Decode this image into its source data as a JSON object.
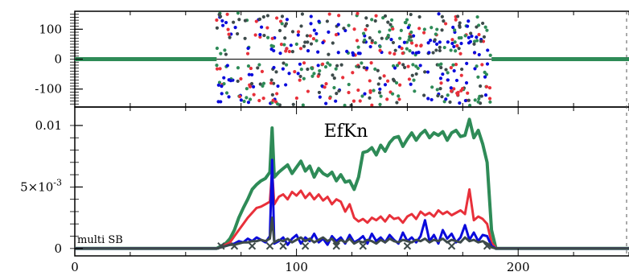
{
  "colors": {
    "green": "#2e8b57",
    "red": "#e8303a",
    "blue": "#0a0adc",
    "dark": "#3d4a4a",
    "axis": "#000000"
  },
  "chart_data": [
    {
      "type": "scatter",
      "title": "",
      "xlim": [
        0,
        250
      ],
      "ylim": [
        -160,
        160
      ],
      "y_ticks": [
        {
          "value": 100,
          "label": "100"
        },
        {
          "value": 0,
          "label": "0"
        },
        {
          "value": -100,
          "label": "-100"
        }
      ],
      "active_x_range": [
        64,
        188
      ],
      "series": [
        {
          "color": "green",
          "values_note": ""
        },
        {
          "color": "red"
        },
        {
          "color": "blue"
        },
        {
          "color": "dark"
        }
      ],
      "zero_line_outside_active": true
    },
    {
      "type": "line",
      "title": "EfKn",
      "annotation": "multi SB",
      "xlim": [
        0,
        250
      ],
      "ylim": [
        -0.0006,
        0.0115
      ],
      "x_ticks": [
        {
          "value": 0,
          "label": "0"
        },
        {
          "value": 100,
          "label": "100"
        },
        {
          "value": 200,
          "label": "200"
        }
      ],
      "y_ticks": [
        {
          "value": 0.01,
          "label": "0.01"
        },
        {
          "value": 0.005,
          "label": "5×10",
          "sup": "-3"
        },
        {
          "value": 0,
          "label": "0"
        }
      ],
      "x": [
        0,
        10,
        20,
        30,
        40,
        50,
        60,
        64,
        66,
        68,
        70,
        72,
        74,
        76,
        78,
        80,
        82,
        84,
        86,
        88,
        89,
        90,
        92,
        94,
        96,
        98,
        100,
        102,
        104,
        106,
        108,
        110,
        112,
        114,
        116,
        118,
        120,
        122,
        124,
        126,
        128,
        130,
        132,
        134,
        136,
        138,
        140,
        142,
        144,
        146,
        148,
        150,
        152,
        154,
        156,
        158,
        160,
        162,
        164,
        166,
        168,
        170,
        172,
        174,
        176,
        178,
        180,
        182,
        184,
        186,
        188,
        190,
        200,
        210,
        220,
        230,
        240,
        250
      ],
      "series_values": {
        "green": [
          0,
          0,
          0,
          0,
          0,
          0,
          0,
          0,
          0.0002,
          0.0004,
          0.0008,
          0.0015,
          0.0025,
          0.0033,
          0.004,
          0.0048,
          0.0052,
          0.0055,
          0.0057,
          0.0062,
          0.0098,
          0.0058,
          0.0062,
          0.0065,
          0.0068,
          0.0061,
          0.0066,
          0.0071,
          0.0063,
          0.0067,
          0.0058,
          0.0065,
          0.0061,
          0.0059,
          0.0062,
          0.0055,
          0.006,
          0.0054,
          0.0055,
          0.0048,
          0.0058,
          0.0078,
          0.0079,
          0.0082,
          0.0076,
          0.0084,
          0.0079,
          0.0086,
          0.009,
          0.0091,
          0.0083,
          0.0089,
          0.0094,
          0.0088,
          0.0093,
          0.0096,
          0.009,
          0.0094,
          0.0092,
          0.0095,
          0.0088,
          0.0094,
          0.0096,
          0.0091,
          0.0092,
          0.0105,
          0.009,
          0.0096,
          0.0085,
          0.007,
          0.0015,
          0,
          0,
          0,
          0,
          0,
          0,
          0
        ],
        "red": [
          0,
          0,
          0,
          0,
          0,
          0,
          0,
          0,
          0.0001,
          0.0003,
          0.0005,
          0.001,
          0.0015,
          0.002,
          0.0025,
          0.0029,
          0.0033,
          0.0034,
          0.0036,
          0.0038,
          0.0063,
          0.0036,
          0.0042,
          0.0044,
          0.004,
          0.0046,
          0.0043,
          0.0047,
          0.0041,
          0.0045,
          0.004,
          0.0044,
          0.0039,
          0.0042,
          0.0036,
          0.004,
          0.0038,
          0.003,
          0.0036,
          0.0025,
          0.0022,
          0.0024,
          0.0021,
          0.0025,
          0.0023,
          0.0026,
          0.0022,
          0.0027,
          0.0024,
          0.0025,
          0.0021,
          0.0026,
          0.0028,
          0.0024,
          0.003,
          0.0027,
          0.0029,
          0.0026,
          0.0031,
          0.0028,
          0.003,
          0.0027,
          0.0029,
          0.0031,
          0.0028,
          0.0048,
          0.0023,
          0.0026,
          0.0024,
          0.002,
          0.0005,
          0,
          0,
          0,
          0,
          0,
          0,
          0
        ],
        "blue": [
          0,
          0,
          0,
          0,
          0,
          0,
          0,
          0,
          0.0001,
          0.0002,
          0.0003,
          0.0004,
          0.0006,
          0.0005,
          0.0008,
          0.0006,
          0.0009,
          0.0007,
          0.0005,
          0.001,
          0.0072,
          0.0004,
          0.0006,
          0.0009,
          0.0003,
          0.0008,
          0.0011,
          0.0004,
          0.0009,
          0.0006,
          0.0012,
          0.0005,
          0.0008,
          0.0003,
          0.001,
          0.0006,
          0.0009,
          0.0004,
          0.0011,
          0.0005,
          0.0007,
          0.001,
          0.0004,
          0.0012,
          0.0006,
          0.0009,
          0.0005,
          0.0011,
          0.0007,
          0.0004,
          0.0013,
          0.0006,
          0.0009,
          0.0005,
          0.001,
          0.0023,
          0.0006,
          0.0011,
          0.0004,
          0.0015,
          0.0008,
          0.0012,
          0.0005,
          0.0009,
          0.0019,
          0.0007,
          0.0013,
          0.0006,
          0.0011,
          0.001,
          0.0002,
          0,
          0,
          0,
          0,
          0,
          0,
          0
        ],
        "dark": [
          0,
          0,
          0,
          0,
          0,
          0,
          0,
          0,
          0.0001,
          0.0002,
          0.0003,
          0.0003,
          0.0004,
          0.0005,
          0.0005,
          0.0006,
          0.0006,
          0.0007,
          0.0006,
          0.0008,
          0.0025,
          0.0005,
          0.0007,
          0.0006,
          0.0008,
          0.0005,
          0.0007,
          0.0009,
          0.0006,
          0.0008,
          0.0005,
          0.0007,
          0.0009,
          0.0006,
          0.0008,
          0.0004,
          0.0007,
          0.0005,
          0.0008,
          0.0004,
          0.0006,
          0.0005,
          0.0007,
          0.0006,
          0.0004,
          0.0007,
          0.0005,
          0.0008,
          0.0006,
          0.0005,
          0.0007,
          0.0006,
          0.0005,
          0.0007,
          0.0006,
          0.0008,
          0.0005,
          0.0007,
          0.0006,
          0.0008,
          0.0005,
          0.0007,
          0.0006,
          0.0005,
          0.0009,
          0.0006,
          0.0007,
          0.0005,
          0.0006,
          0.0004,
          0.0001,
          0,
          0,
          0,
          0,
          0,
          0,
          0
        ]
      },
      "series_order": [
        "green",
        "red",
        "blue",
        "dark"
      ]
    }
  ]
}
